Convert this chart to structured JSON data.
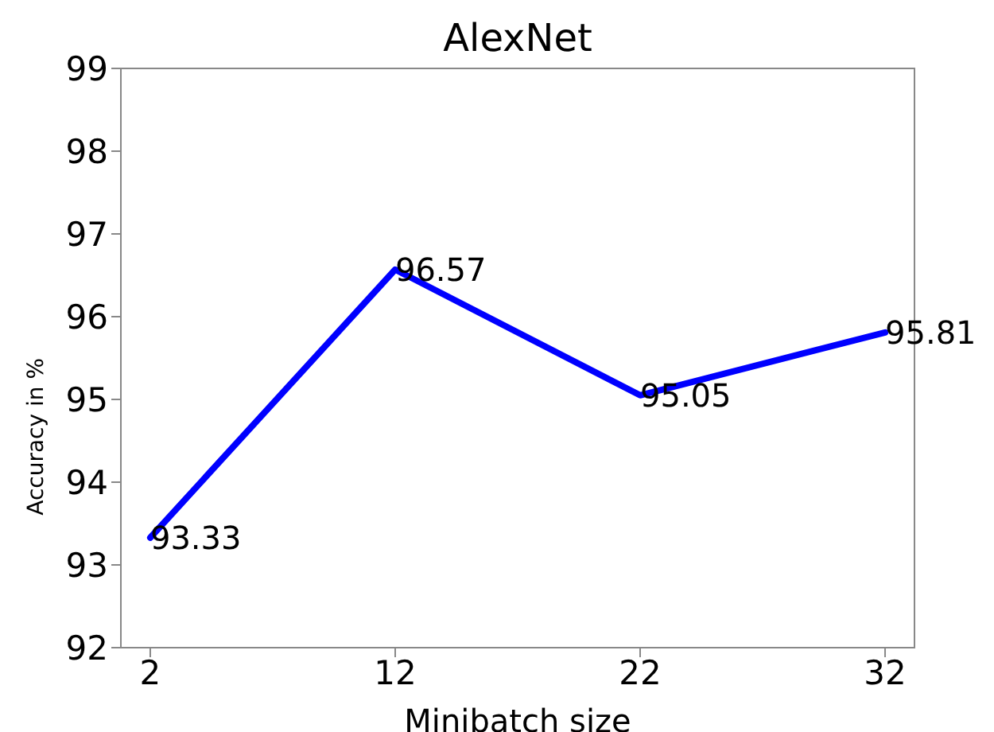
{
  "chart_data": {
    "type": "line",
    "title": "AlexNet",
    "xlabel": "Minibatch size",
    "ylabel": "Accuracy in %",
    "x": [
      2,
      12,
      22,
      32
    ],
    "series": [
      {
        "color": "#0000ff",
        "values": [
          93.33,
          96.57,
          95.05,
          95.81
        ]
      }
    ],
    "xlim": [
      0.8,
      33.2
    ],
    "xticks": [
      2,
      12,
      22,
      32
    ],
    "ylim": [
      92,
      99
    ],
    "yticks": [
      92,
      93,
      94,
      95,
      96,
      97,
      98,
      99
    ],
    "data_labels": true,
    "grid": false,
    "legend": false,
    "marker": "none",
    "line_style": "solid"
  }
}
